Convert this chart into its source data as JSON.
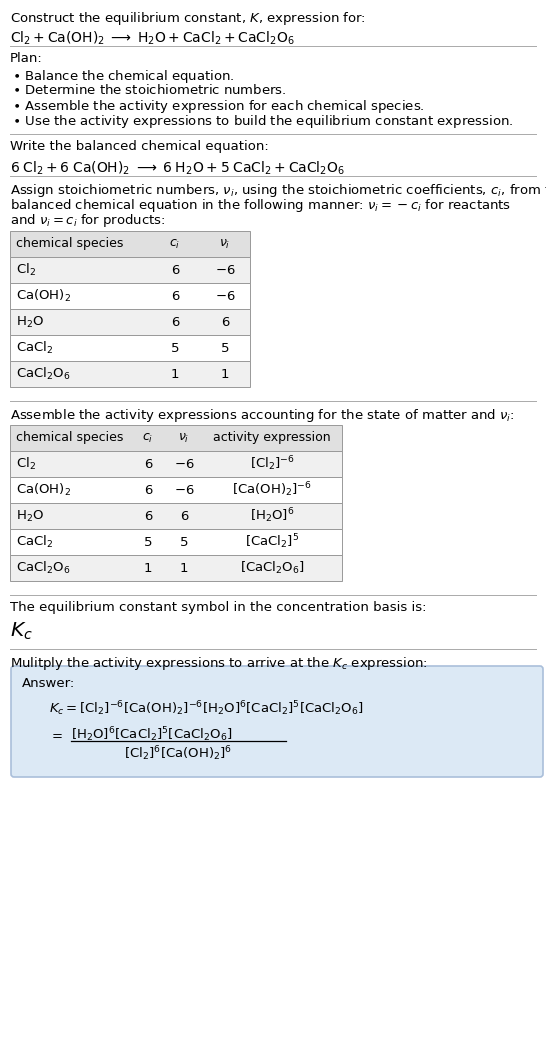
{
  "title_line1": "Construct the equilibrium constant, $K$, expression for:",
  "title_line2": "$\\mathrm{Cl_2 + Ca(OH)_2 \\;\\longrightarrow\\; H_2O + CaCl_2 + CaCl_2O_6}$",
  "plan_header": "Plan:",
  "plan_items": [
    "$\\bullet$ Balance the chemical equation.",
    "$\\bullet$ Determine the stoichiometric numbers.",
    "$\\bullet$ Assemble the activity expression for each chemical species.",
    "$\\bullet$ Use the activity expressions to build the equilibrium constant expression."
  ],
  "balanced_header": "Write the balanced chemical equation:",
  "balanced_eq": "$\\mathrm{6\\;Cl_2 + 6\\;Ca(OH)_2 \\;\\longrightarrow\\; 6\\;H_2O + 5\\;CaCl_2 + CaCl_2O_6}$",
  "stoich_header_parts": [
    "Assign stoichiometric numbers, $\\nu_i$, using the stoichiometric coefficients, $c_i$, from the",
    "balanced chemical equation in the following manner: $\\nu_i = -c_i$ for reactants",
    "and $\\nu_i = c_i$ for products:"
  ],
  "table1_headers": [
    "chemical species",
    "$c_i$",
    "$\\nu_i$"
  ],
  "table1_rows": [
    [
      "$\\mathrm{Cl_2}$",
      "6",
      "$-6$"
    ],
    [
      "$\\mathrm{Ca(OH)_2}$",
      "6",
      "$-6$"
    ],
    [
      "$\\mathrm{H_2O}$",
      "6",
      "6"
    ],
    [
      "$\\mathrm{CaCl_2}$",
      "5",
      "5"
    ],
    [
      "$\\mathrm{CaCl_2O_6}$",
      "1",
      "1"
    ]
  ],
  "activity_header": "Assemble the activity expressions accounting for the state of matter and $\\nu_i$:",
  "table2_headers": [
    "chemical species",
    "$c_i$",
    "$\\nu_i$",
    "activity expression"
  ],
  "table2_rows": [
    [
      "$\\mathrm{Cl_2}$",
      "6",
      "$-6$",
      "$[\\mathrm{Cl_2}]^{-6}$"
    ],
    [
      "$\\mathrm{Ca(OH)_2}$",
      "6",
      "$-6$",
      "$[\\mathrm{Ca(OH)_2}]^{-6}$"
    ],
    [
      "$\\mathrm{H_2O}$",
      "6",
      "6",
      "$[\\mathrm{H_2O}]^{6}$"
    ],
    [
      "$\\mathrm{CaCl_2}$",
      "5",
      "5",
      "$[\\mathrm{CaCl_2}]^{5}$"
    ],
    [
      "$\\mathrm{CaCl_2O_6}$",
      "1",
      "1",
      "$[\\mathrm{CaCl_2O_6}]$"
    ]
  ],
  "kc_symbol_header": "The equilibrium constant symbol in the concentration basis is:",
  "kc_symbol": "$K_c$",
  "multiply_header": "Mulitply the activity expressions to arrive at the $K_c$ expression:",
  "answer_label": "Answer:",
  "answer_line1": "$K_c = [\\mathrm{Cl_2}]^{-6}[\\mathrm{Ca(OH)_2}]^{-6}[\\mathrm{H_2O}]^{6}[\\mathrm{CaCl_2}]^{5}[\\mathrm{CaCl_2O_6}]$",
  "answer_eq_sign": "$=$",
  "answer_line2_num": "$[\\mathrm{H_2O}]^{6}[\\mathrm{CaCl_2}]^{5}[\\mathrm{CaCl_2O_6}]$",
  "answer_line2_den": "$[\\mathrm{Cl_2}]^{6}[\\mathrm{Ca(OH)_2}]^{6}$",
  "bg_color": "#ffffff",
  "table_header_bg": "#e0e0e0",
  "table_row_bg1": "#f0f0f0",
  "table_row_bg2": "#ffffff",
  "answer_box_bg": "#dce9f5",
  "answer_box_border": "#aabfda",
  "separator_color": "#aaaaaa",
  "text_color": "#000000",
  "font_size": 9.5
}
